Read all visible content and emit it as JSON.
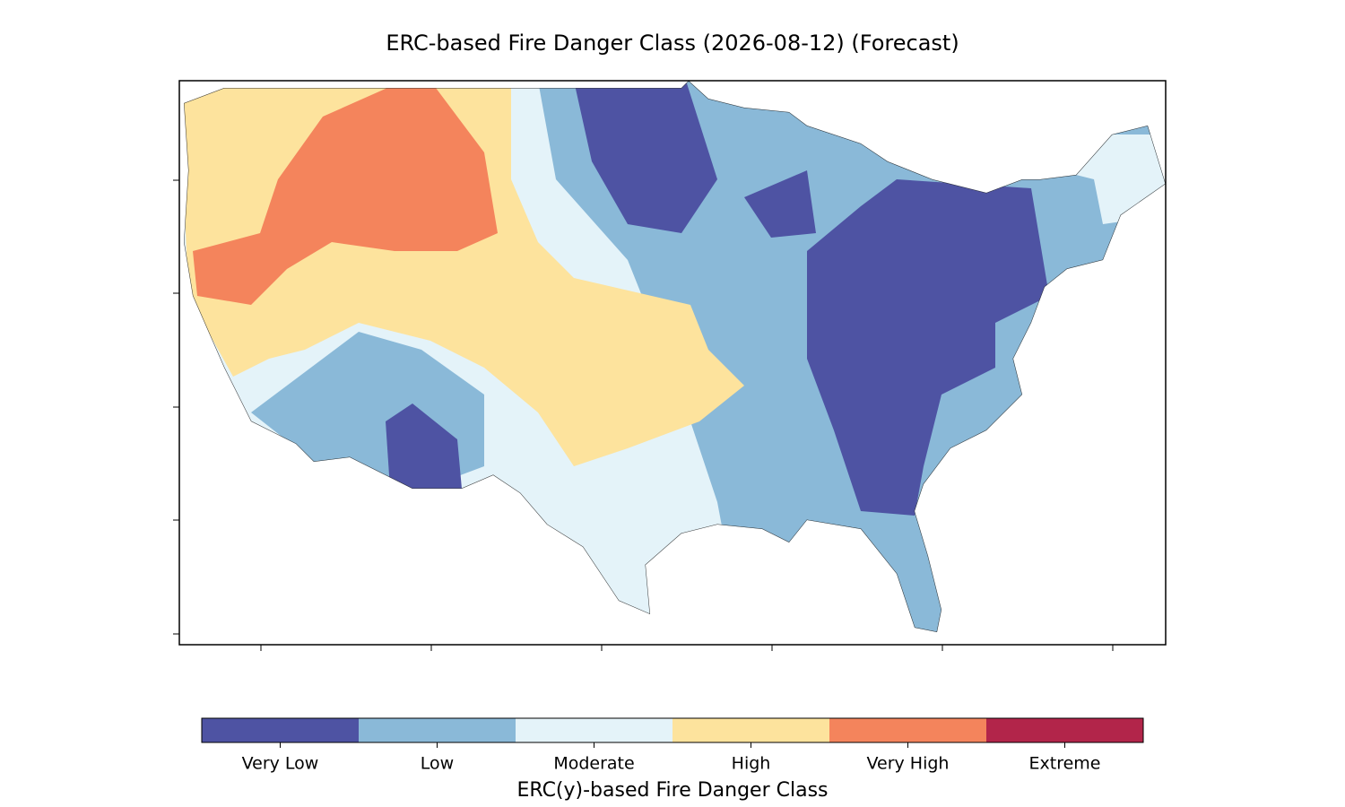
{
  "chart_data": {
    "type": "map",
    "title": "ERC-based Fire Danger Class (2026-08-12) (Forecast)",
    "colorbar_label": "ERC(y)-based Fire Danger Class",
    "categories": [
      "Very Low",
      "Low",
      "Moderate",
      "High",
      "Very High",
      "Extreme"
    ],
    "colors": [
      "#4e53a3",
      "#8ab9d8",
      "#e4f3f9",
      "#fde39d",
      "#f4845c",
      "#b2254a"
    ]
  }
}
